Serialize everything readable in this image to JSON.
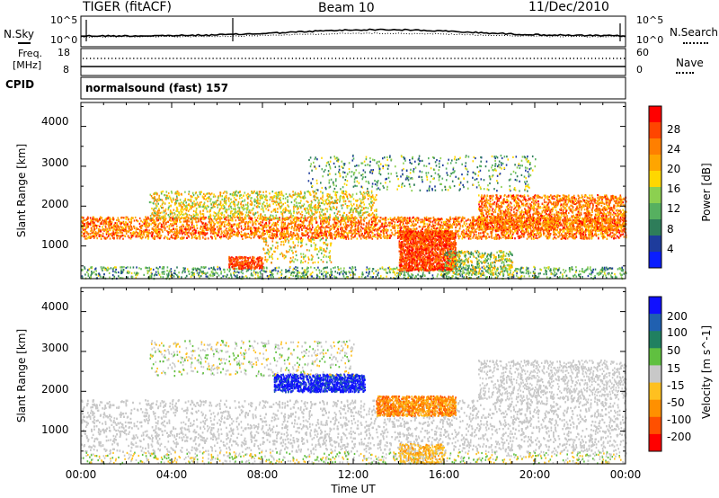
{
  "header": {
    "radar": "TIGER (fitACF)",
    "beam": "Beam 10",
    "date": "11/Dec/2010"
  },
  "top_panel": {
    "left_label": "N.Sky",
    "left_ticks": [
      "10^5",
      "10^0"
    ],
    "right_ticks": [
      "10^5",
      "10^0"
    ],
    "right_label": "N.Search"
  },
  "freq_panel": {
    "left_label_1": "Freq.",
    "left_label_2": "[MHz]",
    "left_ticks": [
      "18",
      "8"
    ],
    "right_ticks": [
      "60",
      "0"
    ],
    "right_label": "Nave"
  },
  "cpid_panel": {
    "label": "CPID",
    "text": "normalsound (fast) 157"
  },
  "power_panel": {
    "ylabel": "Slant Range [km]",
    "yticks": [
      "4000",
      "3000",
      "2000",
      "1000"
    ],
    "colorbar_label": "Power [dB]",
    "colorbar_ticks": [
      "28",
      "24",
      "20",
      "16",
      "12",
      "8",
      "4"
    ],
    "colors": [
      "#0a1eff",
      "#1e3c9c",
      "#2e7d5a",
      "#56b060",
      "#8cd050",
      "#ffd700",
      "#ffa500",
      "#ff7f00",
      "#ff4500",
      "#ff0000"
    ]
  },
  "velocity_panel": {
    "ylabel": "Slant Range [km]",
    "yticks": [
      "4000",
      "3000",
      "2000",
      "1000"
    ],
    "colorbar_label": "Velocity [m s^-1]",
    "colorbar_ticks": [
      "200",
      "100",
      "50",
      "15",
      "-15",
      "-50",
      "-100",
      "-200"
    ],
    "colors": [
      "#1010ff",
      "#2060b0",
      "#208060",
      "#60c040",
      "#c8c8c8",
      "#ffc020",
      "#ff9000",
      "#ff5000",
      "#ff0000"
    ]
  },
  "xaxis": {
    "ticks": [
      "00:00",
      "04:00",
      "08:00",
      "12:00",
      "16:00",
      "20:00",
      "00:00"
    ],
    "label": "Time UT"
  },
  "chart_data": [
    {
      "type": "heatmap",
      "quantity": "Power",
      "unit": "dB",
      "x_range_hours": [
        0,
        24
      ],
      "y_range_km": [
        180,
        4600
      ],
      "color_range": [
        2,
        32
      ],
      "features": [
        {
          "time_h": [
            0,
            24
          ],
          "range_km": [
            1300,
            1700
          ],
          "power_db": 24
        },
        {
          "time_h": [
            14,
            16.5
          ],
          "range_km": [
            500,
            1300
          ],
          "power_db": 28
        },
        {
          "time_h": [
            18,
            24
          ],
          "range_km": [
            1400,
            2200
          ],
          "power_db": 26
        },
        {
          "time_h": [
            7,
            13
          ],
          "range_km": [
            2000,
            2500
          ],
          "power_db": 18
        }
      ]
    },
    {
      "type": "heatmap",
      "quantity": "Velocity",
      "unit": "m s^-1",
      "x_range_hours": [
        0,
        24
      ],
      "y_range_km": [
        180,
        4600
      ],
      "color_range": [
        -250,
        250
      ],
      "features": [
        {
          "time_h": [
            0,
            24
          ],
          "range_km": [
            500,
            1800
          ],
          "velocity_ms": 0
        },
        {
          "time_h": [
            8.5,
            12.5
          ],
          "range_km": [
            2000,
            2400
          ],
          "velocity_ms": 200
        },
        {
          "time_h": [
            13,
            16.5
          ],
          "range_km": [
            1500,
            1900
          ],
          "velocity_ms": -80
        }
      ]
    }
  ]
}
